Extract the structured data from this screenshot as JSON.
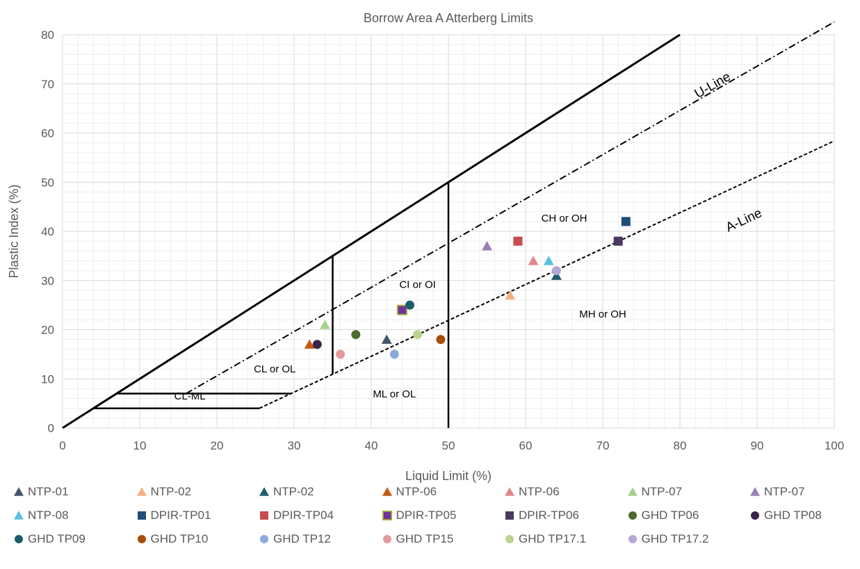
{
  "chart_data": {
    "type": "scatter",
    "title": "Borrow Area A Atterberg Limits",
    "xlabel": "Liquid Limit (%)",
    "ylabel": "Plastic Index (%)",
    "xlim": [
      0,
      100
    ],
    "ylim": [
      0,
      80
    ],
    "x_major": 10,
    "y_major": 10,
    "minor_grid": 2,
    "grid": true,
    "legend_position": "bottom",
    "reference_lines": [
      {
        "label": "U-Line",
        "style": "dash-dot",
        "points": [
          [
            16,
            7
          ],
          [
            100,
            82.6
          ]
        ]
      },
      {
        "label": "A-Line",
        "style": "dashed",
        "points": [
          [
            25.5,
            4
          ],
          [
            100,
            58.4
          ]
        ]
      }
    ],
    "region_labels": [
      "CH or OH",
      "CI or OI",
      "MH or OH",
      "CL or OL",
      "CL-ML",
      "ML or OL"
    ],
    "series": [
      {
        "name": "NTP-01",
        "marker": "triangle",
        "color": "#44546A",
        "x": [
          42
        ],
        "y": [
          18
        ]
      },
      {
        "name": "NTP-02",
        "marker": "triangle",
        "color": "#F4B183",
        "x": [
          58
        ],
        "y": [
          27
        ]
      },
      {
        "name": "NTP-02",
        "marker": "triangle",
        "color": "#1F5C70",
        "x": [
          64
        ],
        "y": [
          31
        ]
      },
      {
        "name": "NTP-06",
        "marker": "triangle",
        "color": "#C55A11",
        "x": [
          32
        ],
        "y": [
          17
        ]
      },
      {
        "name": "NTP-06",
        "marker": "triangle",
        "color": "#E3898E",
        "x": [
          61
        ],
        "y": [
          34
        ]
      },
      {
        "name": "NTP-07",
        "marker": "triangle",
        "color": "#A9D18E",
        "x": [
          34
        ],
        "y": [
          21
        ]
      },
      {
        "name": "NTP-07",
        "marker": "triangle",
        "color": "#9B80B8",
        "x": [
          55
        ],
        "y": [
          37
        ]
      },
      {
        "name": "NTP-08",
        "marker": "triangle",
        "color": "#5BC0DE",
        "x": [
          63
        ],
        "y": [
          34
        ]
      },
      {
        "name": "DPIR-TP01",
        "marker": "square",
        "color": "#1F4E79",
        "x": [
          73
        ],
        "y": [
          42
        ]
      },
      {
        "name": "DPIR-TP04",
        "marker": "square",
        "color": "#C94C4C",
        "x": [
          59
        ],
        "y": [
          38
        ]
      },
      {
        "name": "DPIR-TP05",
        "marker": "square",
        "color": "#7030A0",
        "x": [
          44
        ],
        "y": [
          24
        ]
      },
      {
        "name": "DPIR-TP06",
        "marker": "square",
        "color": "#4B3860",
        "x": [
          72
        ],
        "y": [
          38
        ]
      },
      {
        "name": "GHD TP06",
        "marker": "circle",
        "color": "#4E6B2E",
        "x": [
          38
        ],
        "y": [
          19
        ]
      },
      {
        "name": "GHD TP08",
        "marker": "circle",
        "color": "#3B2449",
        "x": [
          33
        ],
        "y": [
          17
        ]
      },
      {
        "name": "GHD TP09",
        "marker": "circle",
        "color": "#1B5E6B",
        "x": [
          45
        ],
        "y": [
          25
        ]
      },
      {
        "name": "GHD TP10",
        "marker": "circle",
        "color": "#A64D0B",
        "x": [
          49
        ],
        "y": [
          18
        ]
      },
      {
        "name": "GHD TP12",
        "marker": "circle",
        "color": "#8EAADB",
        "x": [
          43
        ],
        "y": [
          15
        ]
      },
      {
        "name": "GHD TP15",
        "marker": "circle",
        "color": "#E39A9A",
        "x": [
          36
        ],
        "y": [
          15
        ]
      },
      {
        "name": "GHD TP17.1",
        "marker": "circle",
        "color": "#B9D48E",
        "x": [
          46
        ],
        "y": [
          19
        ]
      },
      {
        "name": "GHD TP17.2",
        "marker": "circle",
        "color": "#B4A7D6",
        "x": [
          64
        ],
        "y": [
          32
        ]
      }
    ]
  }
}
